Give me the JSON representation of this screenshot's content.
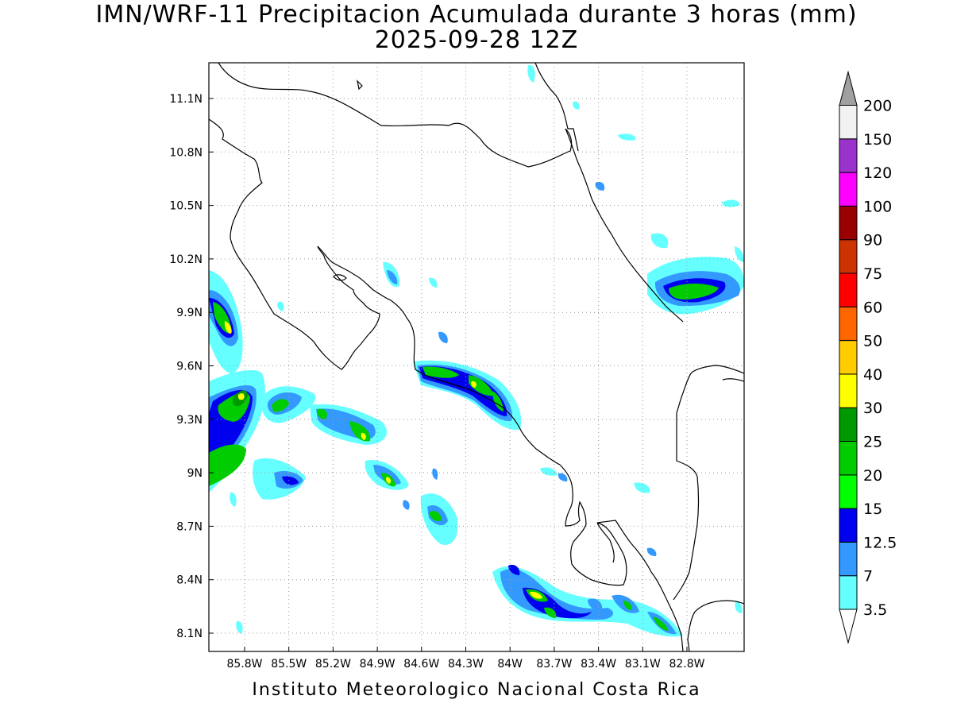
{
  "title": {
    "line1": "IMN/WRF-11 Precipitacion Acumulada durante 3 horas (mm)",
    "line2": "2025-09-28 12Z"
  },
  "footer": {
    "credit": "Instituto Meteorologico Nacional Costa Rica"
  },
  "map": {
    "lon_ticks": [
      "85.8W",
      "85.5W",
      "85.2W",
      "84.9W",
      "84.6W",
      "84.3W",
      "84W",
      "83.7W",
      "83.4W",
      "83.1W",
      "82.8W"
    ],
    "lat_ticks": [
      "11.1N",
      "10.8N",
      "10.5N",
      "10.2N",
      "9.9N",
      "9.6N",
      "9.3N",
      "9N",
      "8.7N",
      "8.4N",
      "8.1N"
    ],
    "gridlines": "dotted"
  },
  "legend": {
    "units": "mm",
    "levels": [
      "3.5",
      "7",
      "12.5",
      "15",
      "20",
      "25",
      "30",
      "40",
      "50",
      "60",
      "75",
      "90",
      "100",
      "120",
      "150",
      "200"
    ],
    "colors": [
      "#66ffff",
      "#3399ff",
      "#0000ee",
      "#00ff00",
      "#00cc00",
      "#009900",
      "#ffff00",
      "#ffcc00",
      "#ff6600",
      "#ff0000",
      "#cc3300",
      "#990000",
      "#ff00ff",
      "#9933cc",
      "#f2f2f2",
      "#a0a0a0"
    ]
  }
}
